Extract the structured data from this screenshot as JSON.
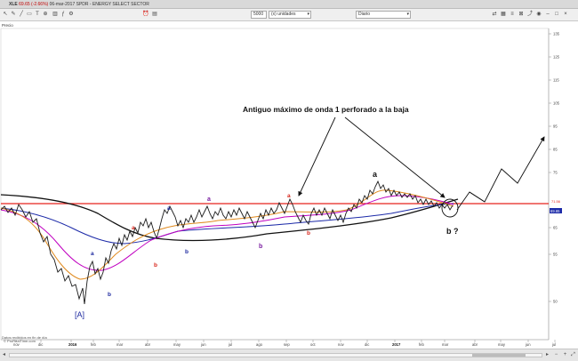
{
  "header": {
    "symbol": "XLE",
    "price_change": "69.65 (-2.66%)",
    "title_rest": "06-mar-2017 SPDR - ENERGY SELECT SECTOR"
  },
  "toolbar": {
    "quantity_value": "5000",
    "units_select": "(x) unidades",
    "period_select": "Diario"
  },
  "legend": {
    "price_label": "Precio",
    "ohlc": "Alto 71.03  Bajo 69.62"
  },
  "price_label_right": "69.65",
  "red_line_label": "71.56",
  "y_axis_ticks": [
    "135",
    "125",
    "115",
    "105",
    "95",
    "85",
    "75",
    "65",
    "55",
    "50"
  ],
  "x_axis_ticks": [
    "nov",
    "dic",
    "2016",
    "feb",
    "mar",
    "abr",
    "may",
    "jun",
    "jul",
    "ago",
    "sep",
    "oct",
    "nov",
    "dic",
    "2017",
    "feb",
    "mar",
    "abr",
    "may",
    "jun",
    "jul"
  ],
  "annotation": "Antiguo máximo de onda 1 perforado a la baja",
  "wave_labels": {
    "A": "[A]",
    "a": "a",
    "b": "b",
    "b_q": "b ?"
  },
  "bottom_note": "Datos recibidos en fin de día",
  "copyright": "© ProRealTime.com",
  "colors": {
    "price": "#1a1a1a",
    "ma_fast": "#e08a1e",
    "ma_mid": "#c000c0",
    "ma_slow": "#1c2aa8",
    "ma_long": "#111111",
    "support": "#e8231d",
    "label_red": "#d8261c",
    "label_blue": "#1e2aa0",
    "label_purple": "#7a1ea0"
  }
}
